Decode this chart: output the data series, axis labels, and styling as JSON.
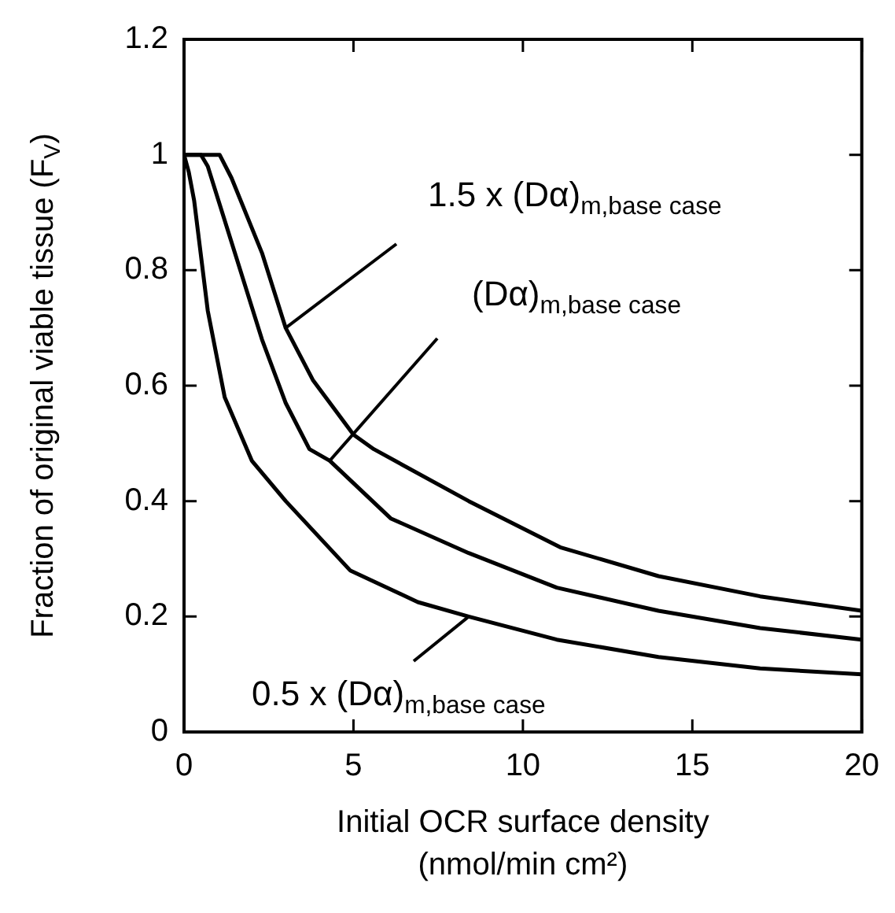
{
  "chart_data": {
    "type": "line",
    "xlabel": "Initial OCR surface density\n(nmol/min cm²)",
    "ylabel": "Fraction of original viable tissue (F$_{V}$)",
    "xlim": [
      0,
      20
    ],
    "xticks": [
      0,
      5,
      10,
      15,
      20
    ],
    "ylim": [
      0,
      1.2
    ],
    "yticks": [
      0,
      0.2,
      0.4,
      0.6,
      0.8,
      1,
      1.2
    ],
    "grid": false,
    "legend": false,
    "marker": "none",
    "line_style": "solid",
    "series": [
      {
        "color": "#000000",
        "x": [
          0,
          0.5,
          1.05,
          1.4,
          2.3,
          3.0,
          3.8,
          5.0,
          5.6,
          8.4,
          11.1,
          14,
          17,
          20
        ],
        "values": [
          1,
          1,
          1,
          0.96,
          0.83,
          0.7,
          0.61,
          0.515,
          0.49,
          0.4,
          0.32,
          0.27,
          0.235,
          0.21
        ]
      },
      {
        "color": "#000000",
        "x": [
          0,
          0.5,
          0.7,
          1.5,
          2.3,
          3.0,
          3.7,
          4.3,
          6.1,
          8.4,
          11,
          14,
          17,
          20
        ],
        "values": [
          1,
          1,
          0.98,
          0.83,
          0.68,
          0.57,
          0.49,
          0.47,
          0.37,
          0.31,
          0.25,
          0.21,
          0.18,
          0.16
        ]
      },
      {
        "color": "#000000",
        "x": [
          0,
          0.14,
          0.3,
          0.7,
          1.2,
          2.0,
          3.0,
          4.9,
          6.9,
          8.4,
          11,
          14,
          17,
          20
        ],
        "values": [
          1,
          0.97,
          0.92,
          0.73,
          0.58,
          0.47,
          0.4,
          0.28,
          0.225,
          0.2,
          0.16,
          0.13,
          0.11,
          0.1
        ]
      }
    ],
    "annotations": [
      {
        "text": "1.5 x (Dα)$_{m,base case}$",
        "x": 3.0,
        "y": 0.7
      },
      {
        "text": "(Dα)$_{m,base case}$",
        "x": 4.3,
        "y": 0.47
      },
      {
        "text": "0.5 x (Dα)$_{m,base case}$",
        "x": 8.4,
        "y": 0.2
      }
    ]
  }
}
